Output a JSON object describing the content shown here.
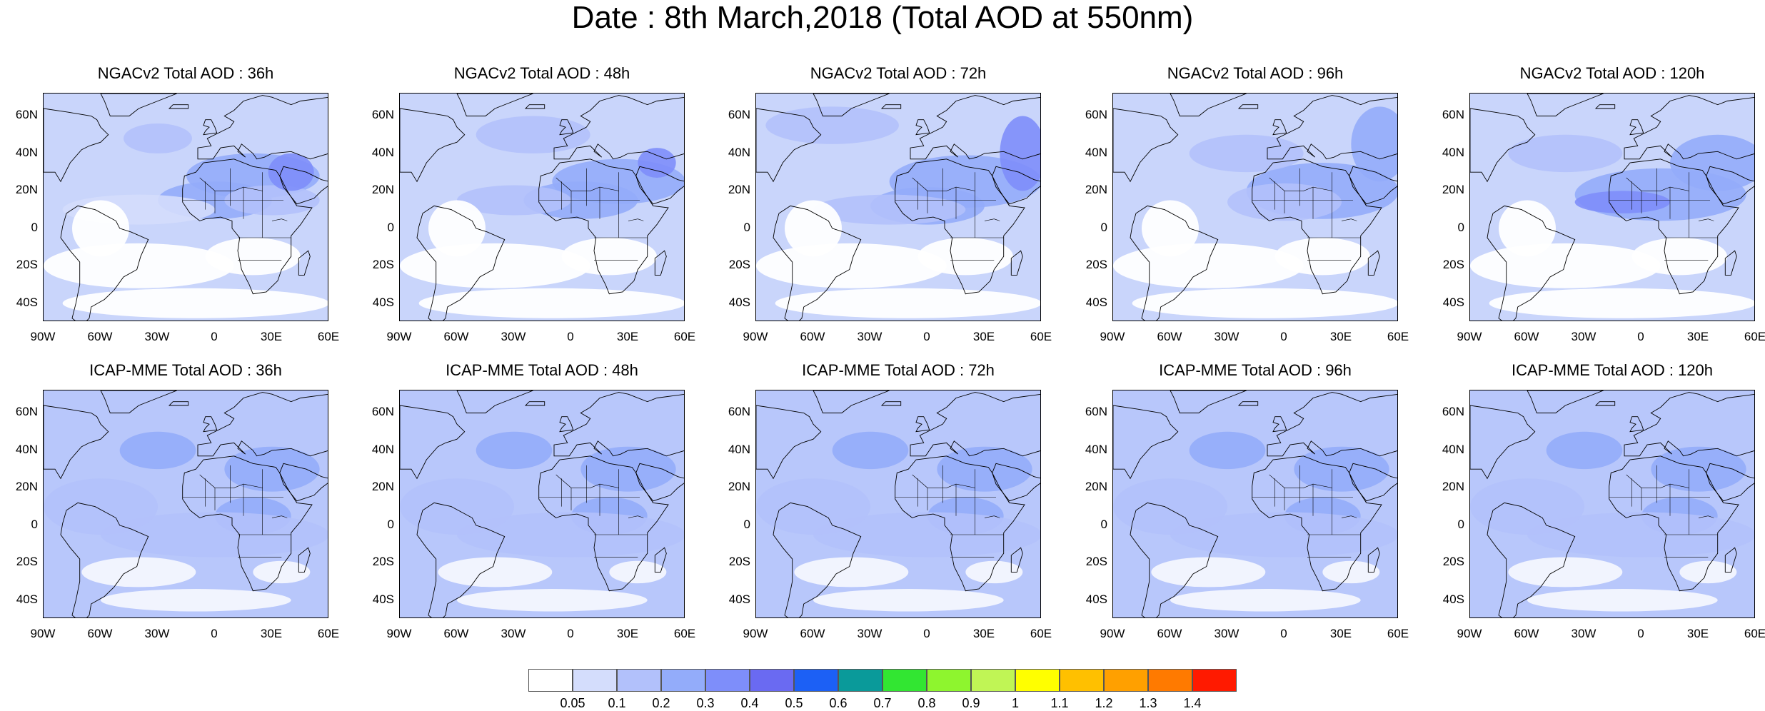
{
  "title": "Date : 8th March,2018 (Total AOD at 550nm)",
  "rows": [
    {
      "model": "NGACv2",
      "panels": [
        {
          "title": "NGACv2 Total AOD : 36h"
        },
        {
          "title": "NGACv2 Total AOD : 48h"
        },
        {
          "title": "NGACv2 Total AOD : 72h"
        },
        {
          "title": "NGACv2 Total AOD : 96h"
        },
        {
          "title": "NGACv2 Total AOD : 120h"
        }
      ]
    },
    {
      "model": "ICAP-MME",
      "panels": [
        {
          "title": "ICAP-MME Total AOD : 36h"
        },
        {
          "title": "ICAP-MME Total AOD : 48h"
        },
        {
          "title": "ICAP-MME Total AOD : 72h"
        },
        {
          "title": "ICAP-MME Total AOD : 96h"
        },
        {
          "title": "ICAP-MME Total AOD : 120h"
        }
      ]
    }
  ],
  "axes": {
    "lat_labels": [
      "60N",
      "40N",
      "20N",
      "0",
      "20S",
      "40S"
    ],
    "lon_labels": [
      "90W",
      "60W",
      "30W",
      "0",
      "30E",
      "60E"
    ]
  },
  "colorbar": {
    "labels": [
      "0.05",
      "0.1",
      "0.2",
      "0.3",
      "0.4",
      "0.5",
      "0.6",
      "0.7",
      "0.8",
      "0.9",
      "1",
      "1.1",
      "1.2",
      "1.3",
      "1.4"
    ],
    "colors": [
      "#ffffff",
      "#d4ddfc",
      "#b2c1fb",
      "#93acfa",
      "#7e8efa",
      "#6a6af2",
      "#1c60f5",
      "#0a9a9a",
      "#32e632",
      "#8ef52e",
      "#c0f555",
      "#ffff00",
      "#ffc000",
      "#ffa000",
      "#ff7a00",
      "#ff1a00"
    ]
  },
  "hotspots": [
    [
      [],
      [],
      [],
      [],
      []
    ],
    [
      [],
      [],
      [],
      [],
      []
    ]
  ]
}
